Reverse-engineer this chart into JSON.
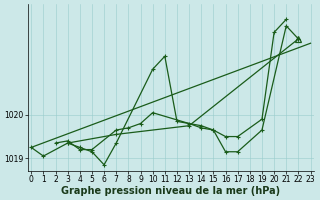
{
  "xlabel": "Graphe pression niveau de la mer (hPa)",
  "bg_color": "#cce8e8",
  "plot_bg_color": "#cce8e8",
  "grid_color": "#99cccc",
  "line_color": "#1a5c1a",
  "marker_color": "#1a5c1a",
  "series1": {
    "x": [
      0,
      1,
      3,
      4,
      5,
      6,
      7,
      10,
      11,
      12,
      14,
      15,
      16,
      17,
      19,
      21,
      22
    ],
    "y": [
      1019.25,
      1019.05,
      1019.35,
      1019.25,
      1019.15,
      1018.85,
      1019.35,
      1021.05,
      1021.35,
      1019.85,
      1019.75,
      1019.65,
      1019.15,
      1019.15,
      1019.65,
      1022.05,
      1021.75
    ]
  },
  "series2": {
    "x": [
      2,
      3,
      4,
      5,
      7,
      8,
      9,
      10,
      13,
      14,
      15,
      16,
      17,
      19,
      20,
      21
    ],
    "y": [
      1019.35,
      1019.4,
      1019.2,
      1019.2,
      1019.65,
      1019.7,
      1019.8,
      1020.05,
      1019.8,
      1019.7,
      1019.65,
      1019.5,
      1019.5,
      1019.9,
      1021.9,
      1022.2
    ]
  },
  "series3_x": [
    0,
    23
  ],
  "series3_y": [
    1019.25,
    1021.65
  ],
  "series4_x": [
    3,
    7,
    13,
    22
  ],
  "series4_y": [
    1019.35,
    1019.55,
    1019.75,
    1021.75
  ],
  "triangle_x": 22,
  "triangle_y": 1021.75,
  "ylim": [
    1018.7,
    1022.55
  ],
  "xlim": [
    -0.3,
    23.3
  ],
  "yticks": [
    1019,
    1020
  ],
  "xticks": [
    0,
    1,
    2,
    3,
    4,
    5,
    6,
    7,
    8,
    9,
    10,
    11,
    12,
    13,
    14,
    15,
    16,
    17,
    18,
    19,
    20,
    21,
    22,
    23
  ],
  "tick_fontsize": 5.5,
  "xlabel_fontsize": 7,
  "line_width": 0.9,
  "marker_size": 3.0,
  "lw_thin": 0.7
}
